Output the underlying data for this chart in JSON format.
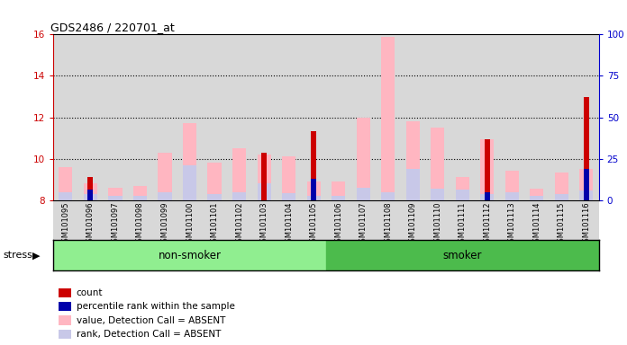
{
  "title": "GDS2486 / 220701_at",
  "samples": [
    "GSM101095",
    "GSM101096",
    "GSM101097",
    "GSM101098",
    "GSM101099",
    "GSM101100",
    "GSM101101",
    "GSM101102",
    "GSM101103",
    "GSM101104",
    "GSM101105",
    "GSM101106",
    "GSM101107",
    "GSM101108",
    "GSM101109",
    "GSM101110",
    "GSM101111",
    "GSM101112",
    "GSM101113",
    "GSM101114",
    "GSM101115",
    "GSM101116"
  ],
  "group_label": "stress",
  "groups": [
    {
      "label": "non-smoker",
      "start": 0,
      "end": 10,
      "color": "#90EE90"
    },
    {
      "label": "smoker",
      "start": 11,
      "end": 21,
      "color": "#4CBB4C"
    }
  ],
  "ylim_left": [
    8,
    16
  ],
  "ylim_right": [
    0,
    100
  ],
  "yticks_left": [
    8,
    10,
    12,
    14,
    16
  ],
  "yticks_right": [
    0,
    25,
    50,
    75,
    100
  ],
  "left_axis_color": "#CC0000",
  "right_axis_color": "#0000CC",
  "bars": [
    {
      "pink_val": 9.6,
      "pink_rank": 8.4,
      "red_val": null,
      "blue_val": null
    },
    {
      "pink_val": 8.8,
      "pink_rank": 8.3,
      "red_val": 9.1,
      "blue_val": 8.5
    },
    {
      "pink_val": 8.6,
      "pink_rank": 8.2,
      "red_val": null,
      "blue_val": null
    },
    {
      "pink_val": 8.7,
      "pink_rank": 8.2,
      "red_val": null,
      "blue_val": null
    },
    {
      "pink_val": 10.3,
      "pink_rank": 8.4,
      "red_val": null,
      "blue_val": null
    },
    {
      "pink_val": 11.7,
      "pink_rank": 9.7,
      "red_val": null,
      "blue_val": null
    },
    {
      "pink_val": 9.8,
      "pink_rank": 8.3,
      "red_val": null,
      "blue_val": null
    },
    {
      "pink_val": 10.5,
      "pink_rank": 8.4,
      "red_val": null,
      "blue_val": null
    },
    {
      "pink_val": 10.2,
      "pink_rank": 8.8,
      "red_val": 10.3,
      "blue_val": null
    },
    {
      "pink_val": 10.1,
      "pink_rank": 8.35,
      "red_val": null,
      "blue_val": null
    },
    {
      "pink_val": 8.9,
      "pink_rank": 8.2,
      "red_val": 11.35,
      "blue_val": 9.05
    },
    {
      "pink_val": 8.9,
      "pink_rank": 8.2,
      "red_val": null,
      "blue_val": null
    },
    {
      "pink_val": 12.0,
      "pink_rank": 8.6,
      "red_val": null,
      "blue_val": null
    },
    {
      "pink_val": 15.9,
      "pink_rank": 8.4,
      "red_val": null,
      "blue_val": null
    },
    {
      "pink_val": 11.8,
      "pink_rank": 9.5,
      "red_val": null,
      "blue_val": null
    },
    {
      "pink_val": 11.5,
      "pink_rank": 8.55,
      "red_val": null,
      "blue_val": null
    },
    {
      "pink_val": 9.1,
      "pink_rank": 8.5,
      "red_val": null,
      "blue_val": null
    },
    {
      "pink_val": 10.95,
      "pink_rank": 8.3,
      "red_val": 10.95,
      "blue_val": 8.4
    },
    {
      "pink_val": 9.4,
      "pink_rank": 8.4,
      "red_val": null,
      "blue_val": null
    },
    {
      "pink_val": 8.55,
      "pink_rank": 8.2,
      "red_val": null,
      "blue_val": null
    },
    {
      "pink_val": 9.35,
      "pink_rank": 8.3,
      "red_val": null,
      "blue_val": null
    },
    {
      "pink_val": 9.5,
      "pink_rank": 8.45,
      "red_val": 13.0,
      "blue_val": 9.5
    }
  ],
  "colors": {
    "red": "#CC0000",
    "blue": "#0000AA",
    "pink": "#FFB6C1",
    "lavender": "#C8C8E8",
    "bg_bar": "#D8D8D8",
    "bg_plot": "#FFFFFF"
  },
  "legend_items": [
    {
      "label": "count",
      "color": "#CC0000"
    },
    {
      "label": "percentile rank within the sample",
      "color": "#0000AA"
    },
    {
      "label": "value, Detection Call = ABSENT",
      "color": "#FFB6C1"
    },
    {
      "label": "rank, Detection Call = ABSENT",
      "color": "#C8C8E8"
    }
  ]
}
